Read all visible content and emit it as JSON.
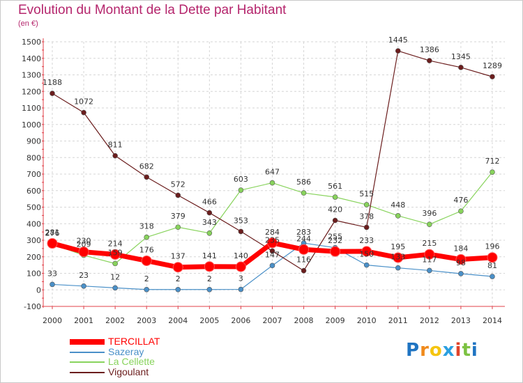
{
  "chart_data": {
    "type": "line",
    "title": "Evolution du Montant de la Dette par Habitant",
    "subtitle": "(en €)",
    "x": [
      "2000",
      "2001",
      "2002",
      "2003",
      "2004",
      "2005",
      "2006",
      "2007",
      "2008",
      "2009",
      "2010",
      "2011",
      "2012",
      "2013",
      "2014"
    ],
    "y_ticks": [
      "-100",
      "0",
      "100",
      "200",
      "300",
      "400",
      "500",
      "600",
      "700",
      "800",
      "900",
      "1000",
      "1100",
      "1200",
      "1300",
      "1400",
      "1500"
    ],
    "ylim": [
      -100,
      1500
    ],
    "grid": true,
    "legend_position": "bottom-left",
    "series": [
      {
        "name": "TERCILLAT",
        "color": "#ff0000",
        "values": [
          281,
          230,
          214,
          176,
          137,
          141,
          140,
          284,
          244,
          232,
          233,
          195,
          215,
          184,
          196
        ]
      },
      {
        "name": "Sazeray",
        "color": "#4a90c8",
        "values": [
          33,
          23,
          12,
          2,
          2,
          2,
          3,
          147,
          283,
          255,
          150,
          133,
          117,
          98,
          81
        ]
      },
      {
        "name": "La Cellette",
        "color": "#88d35c",
        "values": [
          276,
          209,
          159,
          318,
          379,
          343,
          603,
          647,
          586,
          561,
          515,
          448,
          396,
          476,
          712
        ]
      },
      {
        "name": "Vigoulant",
        "color": "#6b1d1d",
        "values": [
          1188,
          1072,
          811,
          682,
          572,
          466,
          353,
          235,
          116,
          420,
          378,
          1445,
          1386,
          1345,
          1289
        ]
      }
    ]
  },
  "brand": {
    "letters": [
      "P",
      "r",
      "o",
      "x",
      "i",
      "t",
      "i"
    ],
    "colors": [
      "#1f74c2",
      "#f08a1b",
      "#f5c50f",
      "#2a9fe0",
      "#e0442b",
      "#7cc242",
      "#1f74c2"
    ]
  }
}
